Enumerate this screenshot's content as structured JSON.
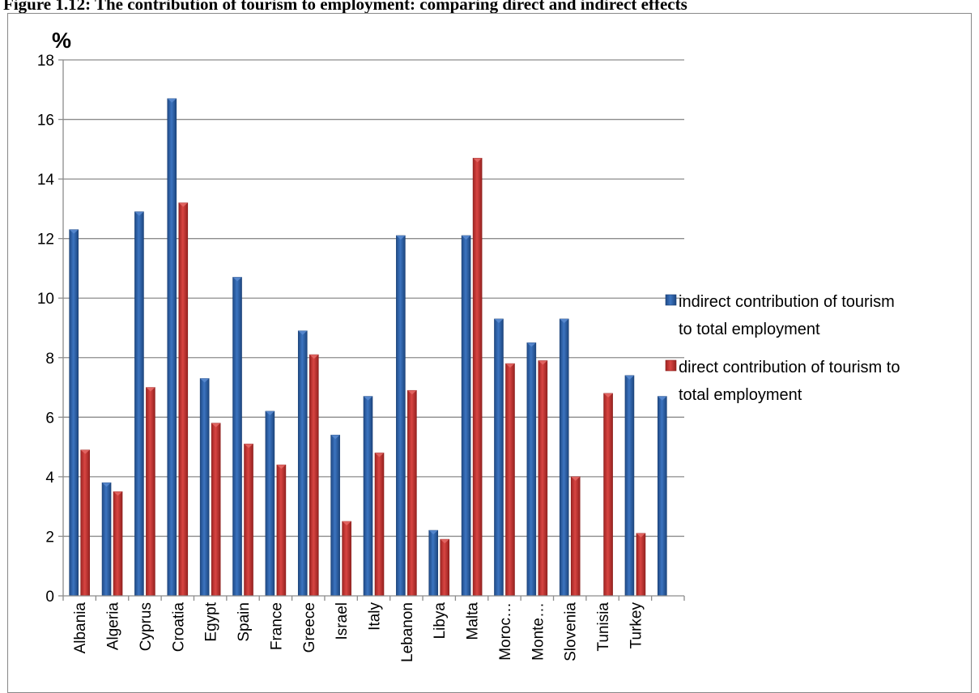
{
  "figure_title": "Figure 1.12: The contribution of tourism to employment: comparing direct and indirect effects",
  "chart_data": {
    "type": "bar",
    "ylabel": "%",
    "ylim": [
      0,
      18
    ],
    "yticks": [
      0,
      2,
      4,
      6,
      8,
      10,
      12,
      14,
      16,
      18
    ],
    "grid": true,
    "legend_position": "right",
    "categories": [
      "Albania",
      "Algeria",
      "Cyprus",
      "Croatia",
      "Egypt",
      "Spain",
      "France",
      "Greece",
      "Israel",
      "Italy",
      "Lebanon",
      "Libya",
      "Malta",
      "Moroc…",
      "Monte…",
      "Slovenia",
      "Tunisia",
      "Turkey",
      ""
    ],
    "series": [
      {
        "name": "indirect contribution of tourism to total employment",
        "legend_lines": [
          "indirect contribution of tourism",
          "to total employment"
        ],
        "color": "#2E5FA3",
        "values": [
          12.3,
          3.8,
          12.9,
          16.7,
          7.3,
          10.7,
          6.2,
          8.9,
          5.4,
          6.7,
          12.1,
          2.2,
          12.1,
          9.3,
          8.5,
          9.3,
          null,
          7.4,
          6.7
        ]
      },
      {
        "name": "direct contribution of tourism to total employment",
        "legend_lines": [
          "direct contribution of tourism to",
          "total employment"
        ],
        "color": "#C0312F",
        "values": [
          4.9,
          3.5,
          7.0,
          13.2,
          5.8,
          5.1,
          4.4,
          8.1,
          2.5,
          4.8,
          6.9,
          1.9,
          14.7,
          7.8,
          7.9,
          4.0,
          6.8,
          2.1,
          null
        ]
      }
    ]
  }
}
